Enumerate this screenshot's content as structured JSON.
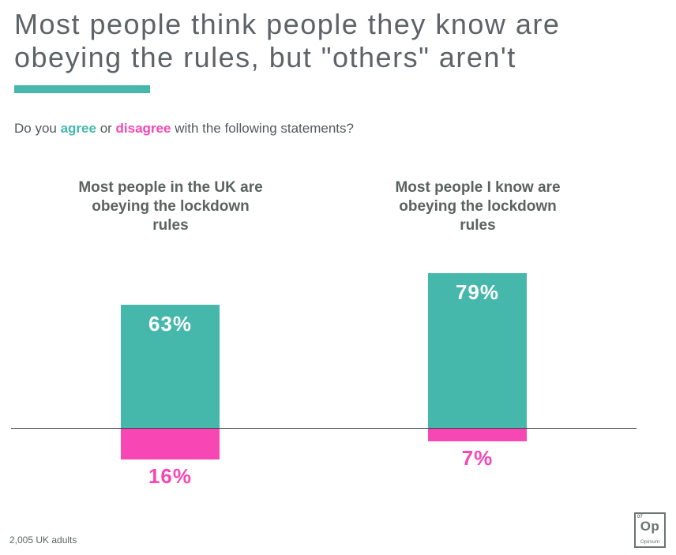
{
  "title": "Most people think people they know are obeying the rules, but \"others\" aren't",
  "subtitle": {
    "prefix": "Do you ",
    "agree_word": "agree",
    "middle": " or ",
    "disagree_word": "disagree",
    "suffix": " with the following statements?"
  },
  "colors": {
    "teal": "#45b7ab",
    "pink": "#f647b4",
    "title_gray": "#5d6366",
    "label_gray": "#5a6360",
    "axis": "#3f3f3f",
    "logo_gray": "#6b7470"
  },
  "chart_data": {
    "type": "bar",
    "subtype": "diverging-vertical",
    "categories": [
      "Most people in the UK are obeying the lockdown rules",
      "Most people I know are obeying the lockdown rules"
    ],
    "series": [
      {
        "name": "agree",
        "direction": "up",
        "color": "#45b7ab",
        "values": [
          63,
          79
        ],
        "labels": [
          "63%",
          "79%"
        ]
      },
      {
        "name": "disagree",
        "direction": "down",
        "color": "#f647b4",
        "values": [
          16,
          7
        ],
        "labels": [
          "16%",
          "7%"
        ]
      }
    ],
    "value_suffix": "%",
    "ylim": [
      0,
      100
    ],
    "grid": false,
    "legend": "none (series colors referenced by colored words in subtitle)",
    "baseline_axis": "horizontal line; agree bars extend up, disagree bars extend down"
  },
  "footer": {
    "sample_note": "2,005 UK adults"
  },
  "logo": {
    "number": "07",
    "symbol": "Op",
    "name": "Opinium"
  }
}
